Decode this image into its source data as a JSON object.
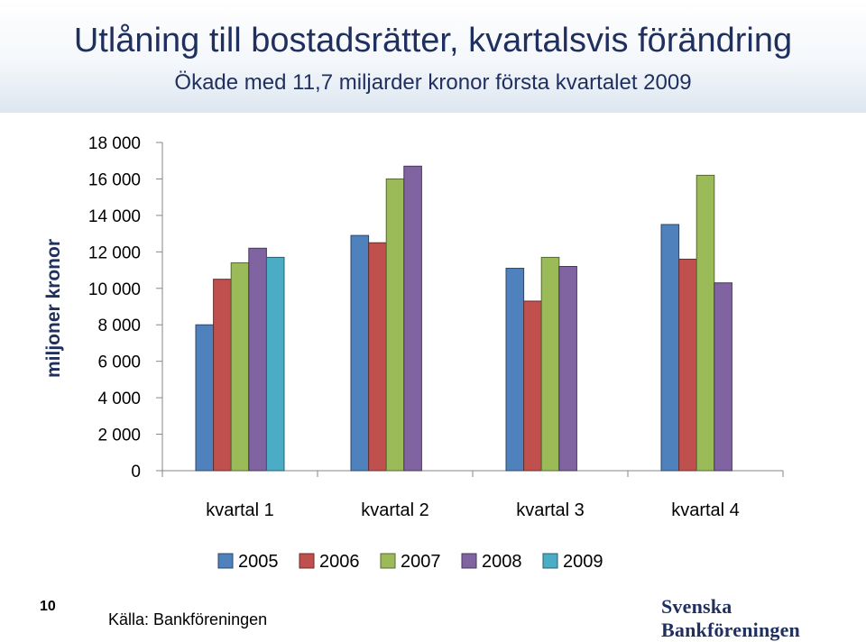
{
  "header": {
    "title": "Utlåning till bostadsrätter, kvartalsvis förändring",
    "subtitle": "Ökade med 11,7 miljarder kronor första kvartalet 2009"
  },
  "footer": {
    "page_number": "10",
    "source": "Källa: Bankföreningen",
    "logo_text": "Svenska Bankföreningen"
  },
  "chart_data": {
    "type": "bar",
    "categories": [
      "kvartal 1",
      "kvartal 2",
      "kvartal 3",
      "kvartal 4"
    ],
    "ylabel": "miljoner kronor",
    "ylim": [
      0,
      18000
    ],
    "yticks": [
      0,
      2000,
      4000,
      6000,
      8000,
      10000,
      12000,
      14000,
      16000,
      18000
    ],
    "ytick_labels": [
      "0",
      "2 000",
      "4 000",
      "6 000",
      "8 000",
      "10 000",
      "12 000",
      "14 000",
      "16 000",
      "18 000"
    ],
    "grid": false,
    "legend_position": "bottom",
    "series": [
      {
        "name": "2005",
        "color": "#4f81bd",
        "values": [
          8000,
          12900,
          11100,
          13500
        ]
      },
      {
        "name": "2006",
        "color": "#c0504d",
        "values": [
          10500,
          12500,
          9300,
          11600
        ]
      },
      {
        "name": "2007",
        "color": "#9bbb59",
        "values": [
          11400,
          16000,
          11700,
          16200
        ]
      },
      {
        "name": "2008",
        "color": "#8064a2",
        "values": [
          12200,
          16700,
          11200,
          10300
        ]
      },
      {
        "name": "2009",
        "color": "#4bacc6",
        "values": [
          11700,
          null,
          null,
          null
        ]
      }
    ]
  }
}
